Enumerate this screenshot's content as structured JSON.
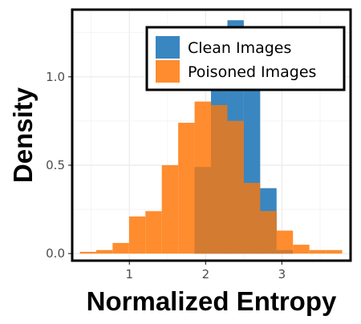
{
  "chart_data": {
    "type": "histogram",
    "title": "",
    "xlabel": "Normalized Entropy",
    "ylabel": "Density",
    "xlim": [
      0.25,
      3.9
    ],
    "ylim": [
      -0.04,
      1.38
    ],
    "bin_width": 0.215,
    "x_ticks": [
      1,
      2,
      3
    ],
    "y_ticks": [
      0.0,
      0.5,
      1.0
    ],
    "y_tick_labels": [
      "0.0",
      "0.5",
      "1.0"
    ],
    "grid": true,
    "legend": {
      "position": "top-right"
    },
    "colors": {
      "clean": "#3a86c0",
      "poisoned": "#ff8c2e",
      "overlap": "#d27b31"
    },
    "series": [
      {
        "name": "Clean Images",
        "bin_starts": [
          0.35,
          0.565,
          0.78,
          0.995,
          1.21,
          1.425,
          1.64,
          1.855,
          2.07,
          2.285,
          2.5,
          2.715,
          2.93,
          3.145,
          3.36,
          3.575
        ],
        "values": [
          0.0,
          0.0,
          0.0,
          0.0,
          0.0,
          0.0,
          0.0,
          0.49,
          1.07,
          1.32,
          1.08,
          0.37,
          0.02,
          0.0,
          0.0,
          0.0
        ]
      },
      {
        "name": "Poisoned Images",
        "bin_starts": [
          0.35,
          0.565,
          0.78,
          0.995,
          1.21,
          1.425,
          1.64,
          1.855,
          2.07,
          2.285,
          2.5,
          2.715,
          2.93,
          3.145,
          3.36,
          3.575
        ],
        "values": [
          0.01,
          0.02,
          0.06,
          0.21,
          0.24,
          0.5,
          0.74,
          0.86,
          0.84,
          0.75,
          0.4,
          0.24,
          0.13,
          0.05,
          0.02,
          0.02
        ]
      }
    ]
  }
}
